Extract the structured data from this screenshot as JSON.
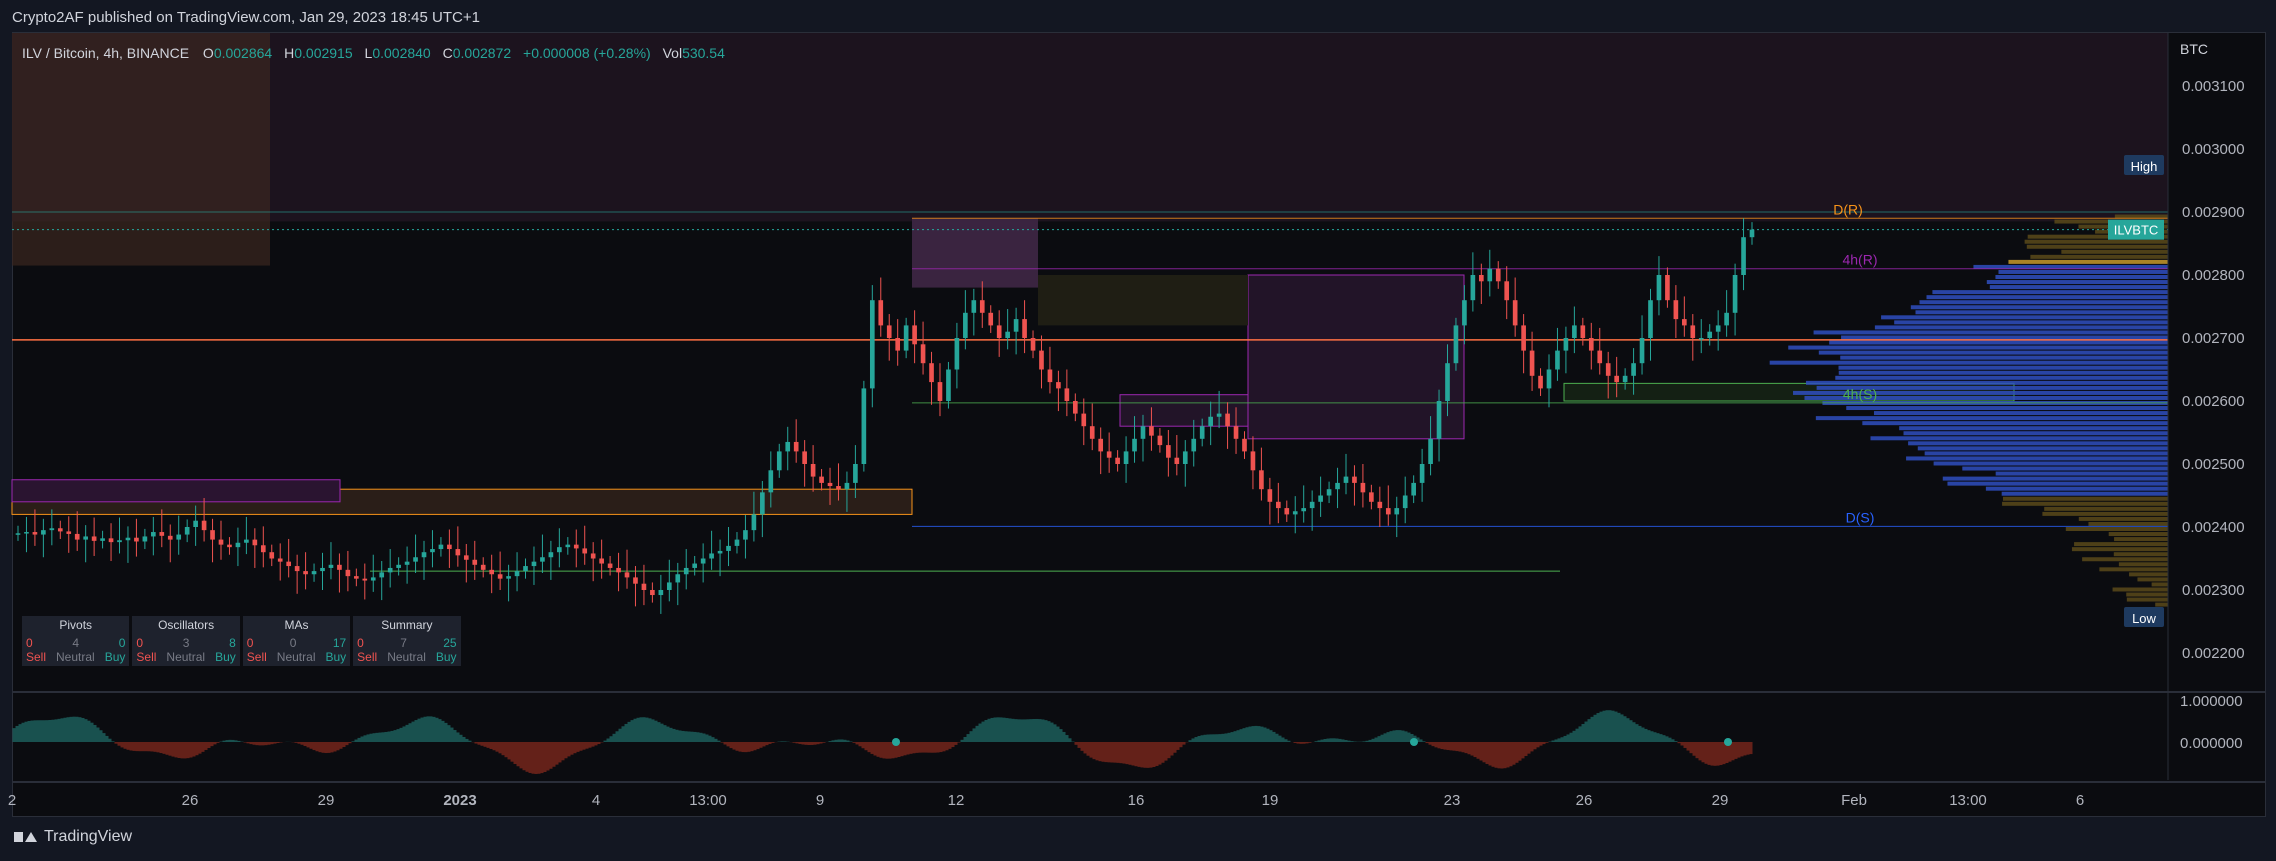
{
  "header": {
    "publisher": "Crypto2AF published on TradingView.com, Jan 29, 2023 18:45 UTC+1"
  },
  "footer": {
    "brand": "TradingView"
  },
  "legend": {
    "symbol": "ILV / Bitcoin, 4h, BINANCE",
    "o_label": "O",
    "o": "0.002864",
    "h_label": "H",
    "h": "0.002915",
    "l_label": "L",
    "l": "0.002840",
    "c_label": "C",
    "c": "0.002872",
    "change": "+0.000008 (+0.28%)",
    "vol_label": "Vol",
    "vol": "530.54"
  },
  "colors": {
    "up": "#26a69a",
    "down": "#ef5350",
    "orange": "#f7931a",
    "purple": "#9c27b0",
    "blue": "#2962ff",
    "gold": "#c79a2a"
  },
  "tech_summary": [
    {
      "title": "Pivots",
      "sell": "0",
      "neutral": "4",
      "buy": "0"
    },
    {
      "title": "Oscillators",
      "sell": "0",
      "neutral": "3",
      "buy": "8"
    },
    {
      "title": "MAs",
      "sell": "0",
      "neutral": "0",
      "buy": "17"
    },
    {
      "title": "Summary",
      "sell": "0",
      "neutral": "7",
      "buy": "25"
    }
  ],
  "tech_labels": {
    "sell": "Sell",
    "neutral": "Neutral",
    "buy": "Buy"
  },
  "chart_data": {
    "type": "candlestick",
    "symbol": "ILVBTC",
    "currency": "BTC",
    "ylim": [
      0.00214,
      0.00318
    ],
    "y_ticks": [
      "0.003100",
      "0.003000",
      "0.002900",
      "0.002800",
      "0.002700",
      "0.002600",
      "0.002500",
      "0.002400",
      "0.002300",
      "0.002200"
    ],
    "x_ticks": [
      "2",
      "26",
      "29",
      "2023",
      "4",
      "13:00",
      "9",
      "12",
      "16",
      "19",
      "23",
      "26",
      "29",
      "Feb",
      "13:00",
      "6"
    ],
    "price_tags": {
      "high": "High",
      "symbol": "ILVBTC",
      "low": "Low"
    },
    "levels": [
      {
        "label": "D(R)",
        "value": 0.00289,
        "color": "#f7931a"
      },
      {
        "label": "4h(R)",
        "value": 0.00281,
        "color": "#9c27b0"
      },
      {
        "label": "4h(S)",
        "value": 0.002597,
        "color": "#4caf50"
      },
      {
        "label": "D(S)",
        "value": 0.002401,
        "color": "#2962ff"
      }
    ],
    "orange_line": 0.002697,
    "close_series": [
      0.00239,
      0.002392,
      0.002388,
      0.002395,
      0.002398,
      0.002393,
      0.002389,
      0.00238,
      0.002385,
      0.002378,
      0.002382,
      0.002376,
      0.002379,
      0.002383,
      0.002377,
      0.002385,
      0.002392,
      0.002386,
      0.00238,
      0.002388,
      0.0024,
      0.00241,
      0.002395,
      0.00238,
      0.002372,
      0.002368,
      0.002375,
      0.00238,
      0.002371,
      0.00236,
      0.00235,
      0.002345,
      0.002338,
      0.00233,
      0.002325,
      0.00233,
      0.002335,
      0.00234,
      0.002332,
      0.002322,
      0.002318,
      0.002315,
      0.00232,
      0.002328,
      0.002335,
      0.00234,
      0.002345,
      0.002352,
      0.00236,
      0.002365,
      0.002372,
      0.002365,
      0.002355,
      0.002348,
      0.00234,
      0.002332,
      0.002325,
      0.002318,
      0.002322,
      0.00233,
      0.002338,
      0.002345,
      0.002352,
      0.00236,
      0.002368,
      0.002372,
      0.002366,
      0.002358,
      0.00235,
      0.002342,
      0.002335,
      0.002328,
      0.00232,
      0.00231,
      0.0023,
      0.002292,
      0.0023,
      0.002312,
      0.002325,
      0.002335,
      0.002342,
      0.00235,
      0.002358,
      0.002362,
      0.00237,
      0.00238,
      0.002395,
      0.00242,
      0.002455,
      0.00249,
      0.00252,
      0.002535,
      0.00252,
      0.0025,
      0.00248,
      0.00247,
      0.002465,
      0.00246,
      0.00247,
      0.0025,
      0.00262,
      0.00276,
      0.00272,
      0.0027,
      0.00268,
      0.00272,
      0.00269,
      0.00266,
      0.00263,
      0.0026,
      0.00265,
      0.0027,
      0.00274,
      0.00276,
      0.00274,
      0.00272,
      0.0027,
      0.00271,
      0.00273,
      0.0027,
      0.00268,
      0.00265,
      0.00263,
      0.00262,
      0.0026,
      0.00258,
      0.00256,
      0.00254,
      0.00252,
      0.00251,
      0.0025,
      0.00252,
      0.00254,
      0.00256,
      0.002545,
      0.00253,
      0.00251,
      0.0025,
      0.00252,
      0.00254,
      0.00256,
      0.002575,
      0.00258,
      0.00256,
      0.00254,
      0.00252,
      0.00249,
      0.00246,
      0.00244,
      0.00243,
      0.00242,
      0.002425,
      0.00243,
      0.00244,
      0.00245,
      0.00246,
      0.00247,
      0.00248,
      0.00247,
      0.002455,
      0.00244,
      0.00243,
      0.00242,
      0.00243,
      0.00245,
      0.00247,
      0.0025,
      0.00254,
      0.0026,
      0.00266,
      0.00272,
      0.00276,
      0.0028,
      0.00279,
      0.00281,
      0.00279,
      0.00276,
      0.00272,
      0.00268,
      0.00264,
      0.00262,
      0.00265,
      0.00268,
      0.0027,
      0.00272,
      0.0027,
      0.00268,
      0.00266,
      0.00264,
      0.00263,
      0.00264,
      0.00266,
      0.0027,
      0.00276,
      0.0028,
      0.00276,
      0.00273,
      0.00272,
      0.0027,
      0.0027,
      0.00271,
      0.00272,
      0.00274,
      0.0028,
      0.00286,
      0.002872
    ]
  }
}
